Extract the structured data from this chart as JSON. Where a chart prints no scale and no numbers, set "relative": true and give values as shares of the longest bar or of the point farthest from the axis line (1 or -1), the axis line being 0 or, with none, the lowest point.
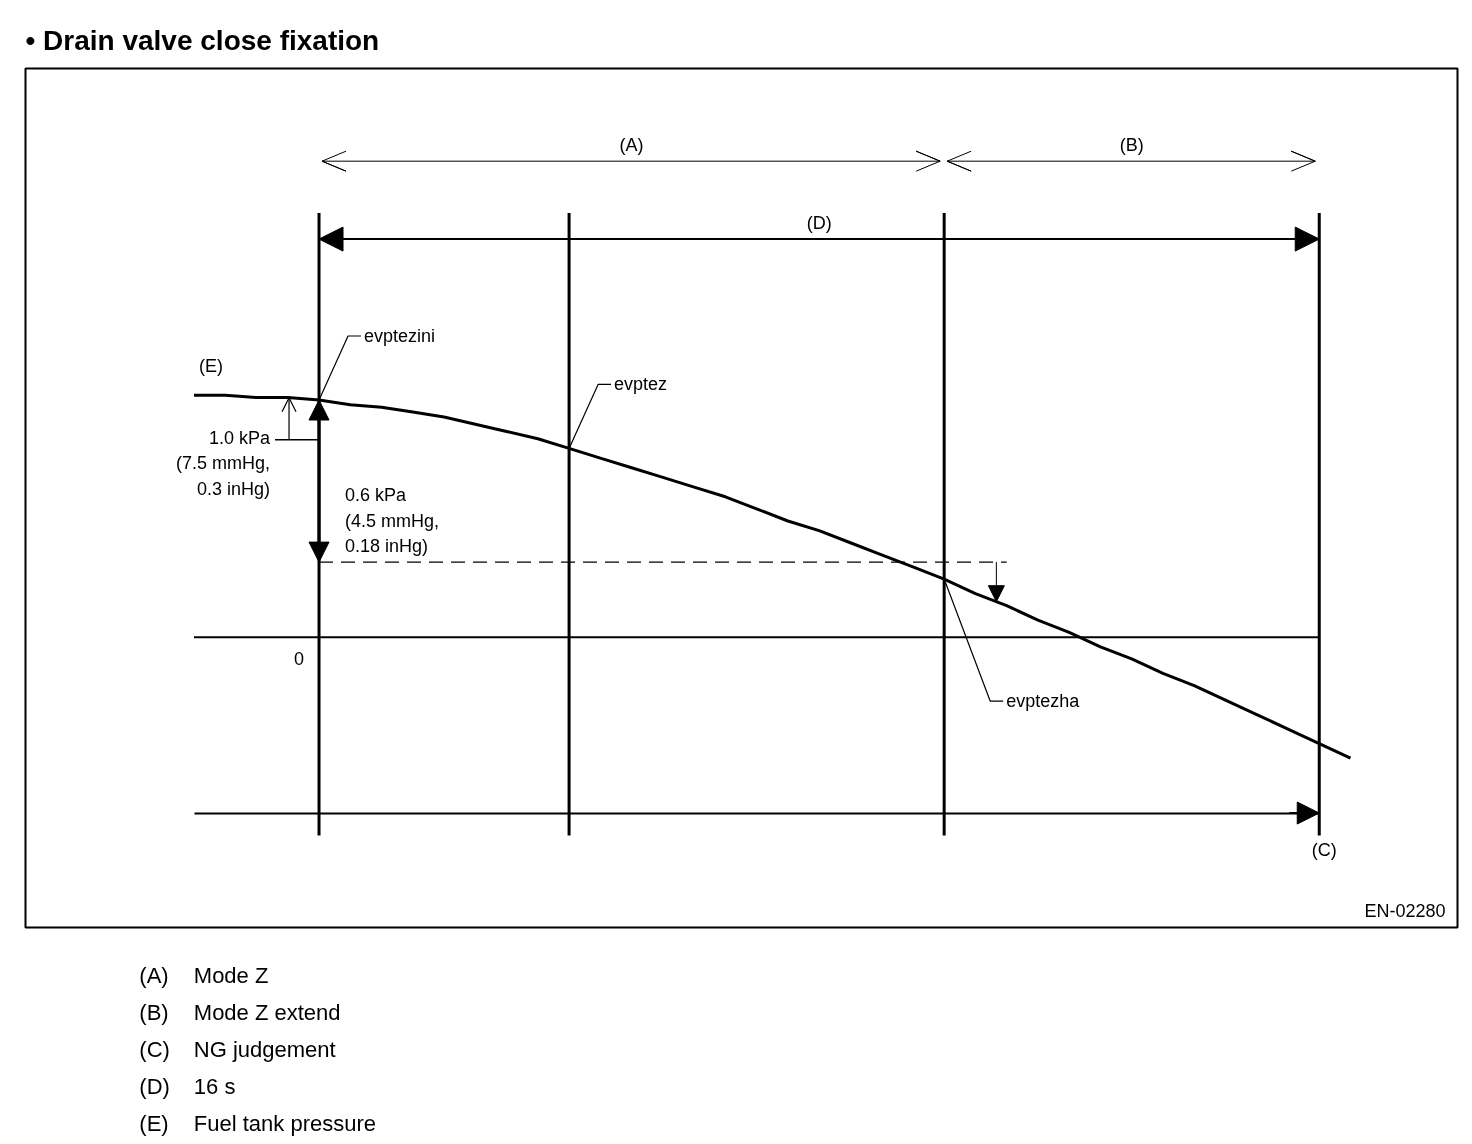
{
  "chart_data": {
    "type": "line",
    "title": "• Drain valve close fixation",
    "relative": true,
    "categories": [
      null,
      null,
      null,
      null,
      null,
      null,
      null,
      null,
      null,
      null,
      null,
      null,
      null,
      null,
      null,
      null,
      null,
      null,
      null,
      null,
      null,
      null,
      null,
      null,
      null,
      null,
      null,
      null,
      null,
      null,
      null,
      null,
      null,
      null,
      null,
      null,
      null,
      null
    ],
    "series": [
      {
        "name": "(E)",
        "color": "#000000",
        "values": [
          1.0,
          1.0,
          0.99,
          0.99,
          0.98,
          0.96,
          0.95,
          0.93,
          0.91,
          0.88,
          0.85,
          0.82,
          0.78,
          0.74,
          0.7,
          0.66,
          0.62,
          0.58,
          0.53,
          0.48,
          0.44,
          0.39,
          0.34,
          0.29,
          0.24,
          0.18,
          0.13,
          0.07,
          0.02,
          -0.04,
          -0.09,
          -0.15,
          -0.2,
          -0.26,
          -0.32,
          -0.38,
          -0.44,
          -0.5
        ]
      },
      {
        "color": "#000000",
        "line_style": "dashed",
        "values": [
          null,
          null,
          null,
          null,
          0.31,
          0.31,
          0.31,
          0.31,
          0.31,
          0.31,
          0.31,
          0.31,
          0.31,
          0.31,
          0.31,
          0.31,
          0.31,
          0.31,
          0.31,
          0.31,
          0.31,
          0.31,
          0.31,
          0.31,
          0.31,
          0.31,
          0.31,
          null,
          null,
          null,
          null,
          null,
          null,
          null,
          null,
          null,
          null,
          null
        ]
      }
    ],
    "ref_lines": [
      {
        "axis": "y",
        "value": 0,
        "label": "0"
      }
    ],
    "annotations": [
      "(A)",
      "(B)",
      "(D)",
      "(C)",
      "evptezini",
      "evptez",
      "evptezha",
      "1.0 kPa\n(7.5 mmHg,\n0.3 inHg)",
      "0.6 kPa\n(4.5 mmHg,\n0.18 inHg)",
      "EN-02280",
      "(A) Mode Z",
      "(B) Mode Z extend",
      "(C) NG judgement",
      "(D) 16 s",
      "(E) Fuel tank pressure"
    ]
  }
}
